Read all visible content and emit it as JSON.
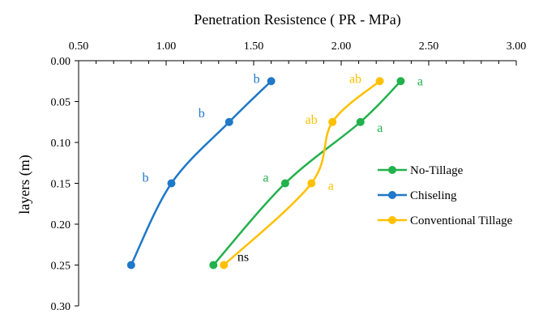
{
  "chart_data": {
    "type": "line",
    "xlabel": "Penetration  Resistence  ( PR - MPa)",
    "ylabel": "layers  (m)",
    "xlim": [
      0.5,
      3.0
    ],
    "ylim": [
      0.0,
      0.3
    ],
    "x_axis_position": "top",
    "y_axis_reversed": true,
    "grid": false,
    "legend_position": "right",
    "x_tick_labels": [
      "0.50",
      "1.00",
      "1.50",
      "2.00",
      "2.50",
      "3.00"
    ],
    "x_ticks": [
      0.5,
      1.0,
      1.5,
      2.0,
      2.5,
      3.0
    ],
    "y_tick_labels": [
      "0.00",
      "0.05",
      "0.10",
      "0.15",
      "0.20",
      "0.25",
      "0.30"
    ],
    "y_ticks": [
      0.0,
      0.05,
      0.1,
      0.15,
      0.2,
      0.25,
      0.3
    ],
    "series": [
      {
        "name": "No-Tillage",
        "color": "#22b14c",
        "points": [
          {
            "pr": 2.34,
            "depth": 0.025,
            "label": "a"
          },
          {
            "pr": 2.11,
            "depth": 0.075,
            "label": "a"
          },
          {
            "pr": 1.68,
            "depth": 0.15,
            "label": "a"
          },
          {
            "pr": 1.27,
            "depth": 0.25,
            "label": ""
          }
        ]
      },
      {
        "name": "Chiseling",
        "color": "#1f78c8",
        "points": [
          {
            "pr": 1.6,
            "depth": 0.025,
            "label": "b"
          },
          {
            "pr": 1.36,
            "depth": 0.075,
            "label": "b"
          },
          {
            "pr": 1.03,
            "depth": 0.15,
            "label": "b"
          },
          {
            "pr": 0.8,
            "depth": 0.25,
            "label": ""
          }
        ]
      },
      {
        "name": "Conventional Tillage",
        "color": "#ffc000",
        "points": [
          {
            "pr": 2.22,
            "depth": 0.025,
            "label": "ab"
          },
          {
            "pr": 1.95,
            "depth": 0.075,
            "label": "ab"
          },
          {
            "pr": 1.83,
            "depth": 0.15,
            "label": "a"
          },
          {
            "pr": 1.33,
            "depth": 0.25,
            "label": ""
          }
        ]
      }
    ],
    "annotations": [
      {
        "text": "ns",
        "pr": 1.44,
        "depth": 0.245,
        "color": "#000000"
      }
    ]
  }
}
